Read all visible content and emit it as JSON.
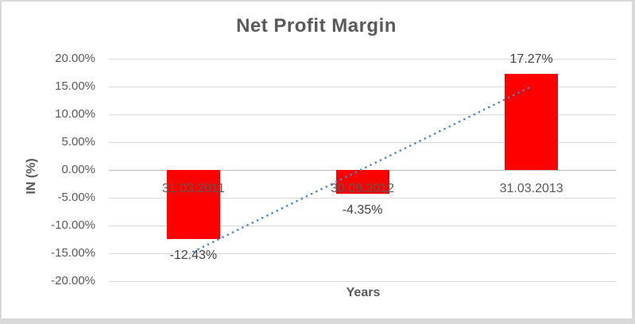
{
  "chart_data": {
    "type": "bar",
    "title": "Net Profit Margin",
    "xlabel": "Years",
    "ylabel": "IN (%)",
    "categories": [
      "31.03.2011",
      "30.09.2012",
      "31.03.2013"
    ],
    "series": [
      {
        "name": "Net Profit Margin",
        "values": [
          -12.43,
          -4.35,
          17.27
        ]
      }
    ],
    "data_labels": [
      "-12.43%",
      "-4.35%",
      "17.27%"
    ],
    "ylim": [
      -20,
      20
    ],
    "ytick_step": 5,
    "yticks": [
      {
        "value": 20,
        "label": "20.00%"
      },
      {
        "value": 15,
        "label": "15.00%"
      },
      {
        "value": 10,
        "label": "10.00%"
      },
      {
        "value": 5,
        "label": "5.00%"
      },
      {
        "value": 0,
        "label": "0.00%"
      },
      {
        "value": -5,
        "label": "-5.00%"
      },
      {
        "value": -10,
        "label": "-10.00%"
      },
      {
        "value": -15,
        "label": "-15.00%"
      },
      {
        "value": -20,
        "label": "-20.00%"
      }
    ],
    "grid": true,
    "legend": "none",
    "trendline": {
      "type": "linear",
      "style": "dotted",
      "start_value": -14.69,
      "end_value": 15.01
    },
    "colors": {
      "bar": "#FF0000",
      "trendline": "#4A86C8",
      "title_text": "#595959",
      "axis_text": "#595959",
      "data_label_text": "#404040",
      "gridline": "#D9D9D9",
      "zero_line": "#BFBFBF",
      "frame": "#D9D9D9",
      "background": "#FFFFFF"
    }
  }
}
